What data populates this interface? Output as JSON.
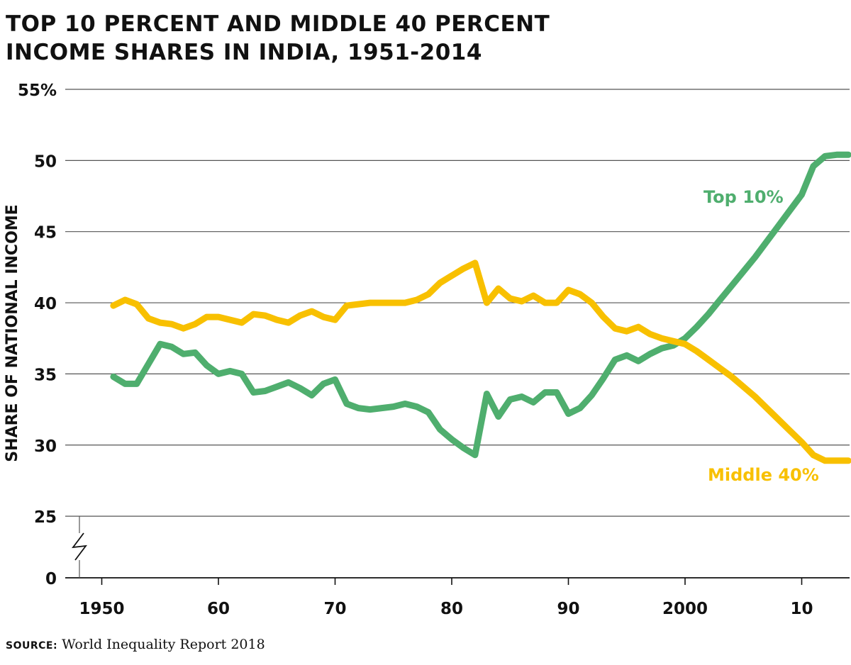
{
  "page": {
    "title_line1": "TOP 10 PERCENT AND MIDDLE 40 PERCENT",
    "title_line2": "INCOME SHARES IN INDIA, 1951-2014",
    "source_label": "SOURCE:",
    "source_text": " World Inequality Report 2018"
  },
  "chart_data": {
    "type": "line",
    "title": "TOP 10 PERCENT AND MIDDLE 40 PERCENT INCOME SHARES IN INDIA, 1951-2014",
    "xlabel": "",
    "ylabel": "SHARE OF NATIONAL INCOME",
    "xlim": [
      1948.5,
      2014.5
    ],
    "ylim": [
      25,
      55
    ],
    "y_axis_break": "0 to 25",
    "grid": "horizontal",
    "x_ticks": [
      {
        "value": 1950,
        "label": "1950"
      },
      {
        "value": 1960,
        "label": "60"
      },
      {
        "value": 1970,
        "label": "70"
      },
      {
        "value": 1980,
        "label": "80"
      },
      {
        "value": 1990,
        "label": "90"
      },
      {
        "value": 2000,
        "label": "2000"
      },
      {
        "value": 2010,
        "label": "10"
      }
    ],
    "y_ticks": [
      {
        "value": 55,
        "label": "55%"
      },
      {
        "value": 50,
        "label": "50"
      },
      {
        "value": 45,
        "label": "45"
      },
      {
        "value": 40,
        "label": "40"
      },
      {
        "value": 35,
        "label": "35"
      },
      {
        "value": 30,
        "label": "30"
      },
      {
        "value": 25,
        "label": "25"
      },
      {
        "value": 0,
        "label": "0"
      }
    ],
    "x": [
      1951,
      1952,
      1953,
      1954,
      1955,
      1956,
      1957,
      1958,
      1959,
      1960,
      1961,
      1962,
      1963,
      1964,
      1965,
      1966,
      1967,
      1968,
      1969,
      1970,
      1971,
      1972,
      1973,
      1974,
      1975,
      1976,
      1977,
      1978,
      1979,
      1980,
      1981,
      1982,
      1983,
      1984,
      1985,
      1986,
      1987,
      1988,
      1989,
      1990,
      1991,
      1992,
      1993,
      1994,
      1995,
      1996,
      1997,
      1998,
      1999,
      2000,
      2001,
      2002,
      2003,
      2004,
      2005,
      2006,
      2007,
      2008,
      2009,
      2010,
      2011,
      2012,
      2013,
      2014
    ],
    "series": [
      {
        "name": "Top 10%",
        "color": "#4fae6e",
        "values": [
          34.8,
          34.3,
          34.3,
          35.7,
          37.1,
          36.9,
          36.4,
          36.5,
          35.6,
          35.0,
          35.2,
          35.0,
          33.7,
          33.8,
          34.1,
          34.4,
          34.0,
          33.5,
          34.3,
          34.6,
          32.9,
          32.6,
          32.5,
          32.6,
          32.7,
          32.9,
          32.7,
          32.3,
          31.1,
          30.4,
          29.8,
          29.3,
          33.6,
          32.0,
          33.2,
          33.4,
          33.0,
          33.7,
          33.7,
          32.2,
          32.6,
          33.5,
          34.7,
          36.0,
          36.3,
          35.9,
          36.4,
          36.8,
          37.0,
          37.5,
          38.3,
          39.2,
          40.2,
          41.2,
          42.2,
          43.2,
          44.3,
          45.4,
          46.5,
          47.6,
          49.6,
          50.3,
          50.4,
          50.4
        ]
      },
      {
        "name": "Middle 40%",
        "color": "#f8c000",
        "values": [
          39.8,
          40.2,
          39.9,
          38.9,
          38.6,
          38.5,
          38.2,
          38.5,
          39.0,
          39.0,
          38.8,
          38.6,
          39.2,
          39.1,
          38.8,
          38.6,
          39.1,
          39.4,
          39.0,
          38.8,
          39.8,
          39.9,
          40.0,
          40.0,
          40.0,
          40.0,
          40.2,
          40.6,
          41.4,
          41.9,
          42.4,
          42.8,
          40.0,
          41.0,
          40.3,
          40.1,
          40.5,
          40.0,
          40.0,
          40.9,
          40.6,
          40.0,
          39.0,
          38.2,
          38.0,
          38.3,
          37.8,
          37.5,
          37.3,
          37.1,
          36.6,
          36.0,
          35.4,
          34.8,
          34.1,
          33.4,
          32.6,
          31.8,
          31.0,
          30.2,
          29.3,
          28.9,
          28.9,
          28.9
        ]
      }
    ]
  }
}
